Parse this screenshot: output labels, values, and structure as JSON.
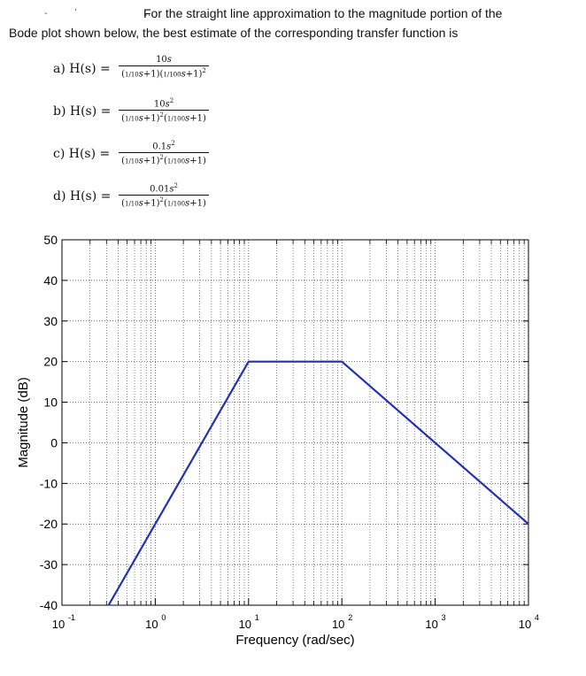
{
  "question": {
    "line1": "For the straight line approximation to the magnitude portion of the",
    "line2": "Bode plot shown below, the best estimate of the corresponding transfer function is"
  },
  "options": [
    {
      "label": "a)  H(s) =",
      "num": "10s",
      "den": "(1/10 s+1)(1/100 s+1)^2"
    },
    {
      "label": "b)  H(s) =",
      "num": "10s^2",
      "den": "(1/10 s+1)^2 (1/100 s+1)"
    },
    {
      "label": "c)  H(s) =",
      "num": "0.1s^2",
      "den": "(1/10 s+1)^2 (1/100 s+1)"
    },
    {
      "label": "d)  H(s) =",
      "num": "0.01s^2",
      "den": "(1/10 s+1)^2 (1/100 s+1)"
    }
  ],
  "chart_data": {
    "type": "line",
    "title": "",
    "xlabel": "Frequency (rad/sec)",
    "ylabel": "Magnitude (dB)",
    "xscale": "log",
    "xlim": [
      0.1,
      10000
    ],
    "ylim": [
      -40,
      50
    ],
    "grid": true,
    "xticks": [
      0.1,
      1,
      10,
      100,
      1000,
      10000
    ],
    "xtick_labels": [
      "10^-1",
      "10^0",
      "10^1",
      "10^2",
      "10^3",
      "10^4"
    ],
    "yticks": [
      50,
      40,
      30,
      20,
      10,
      0,
      -10,
      -20,
      -30,
      -40
    ],
    "ytick_labels": [
      "50",
      "40",
      "30",
      "20",
      "10",
      "0",
      "-10",
      "-20",
      "-30",
      "-40"
    ],
    "series": [
      {
        "color": "#1f2fbf",
        "x": [
          0.316,
          10,
          100,
          10000
        ],
        "y": [
          -40,
          20,
          20,
          -20
        ]
      }
    ]
  }
}
